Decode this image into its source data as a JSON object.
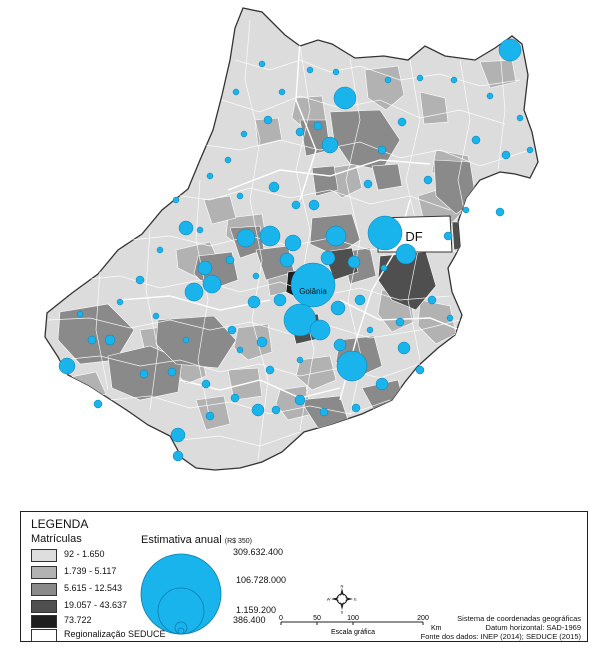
{
  "map": {
    "df_label": "DF",
    "city_label": "Goiânia"
  },
  "legend": {
    "title": "LEGENDA",
    "classes_title": "Matrículas",
    "classes": [
      {
        "label": "92 - 1.650",
        "color": "#dedede"
      },
      {
        "label": "1.739 - 5.117",
        "color": "#b2b2b2"
      },
      {
        "label": "5.615 - 12.543",
        "color": "#8a8a8a"
      },
      {
        "label": "19.057 - 43.637",
        "color": "#4f4f4f"
      },
      {
        "label": "73.722",
        "color": "#1e1e1e"
      },
      {
        "label": "Regionalização SEDUCE",
        "color": "#ffffff"
      }
    ],
    "estimate_title": "Estimativa anual",
    "estimate_unit": "(R$ 350)",
    "bubble_values": [
      "309.632.400",
      "106.728.000",
      "1.159.200",
      "386.400"
    ],
    "bubble_color": "#1ab4ec",
    "north_label": "N",
    "west_label": "W",
    "east_label": "E",
    "south_label": "S",
    "scale_ticks": [
      "0",
      "50",
      "100",
      "200"
    ],
    "scale_unit": "Km",
    "scale_label": "Escala gráfica",
    "meta_lines": [
      "Sistema de coordenadas geográficas",
      "Datum horizontal: SAD-1969",
      "Fonte dos dados: INEP (2014); SEDUCE (2015)"
    ]
  }
}
